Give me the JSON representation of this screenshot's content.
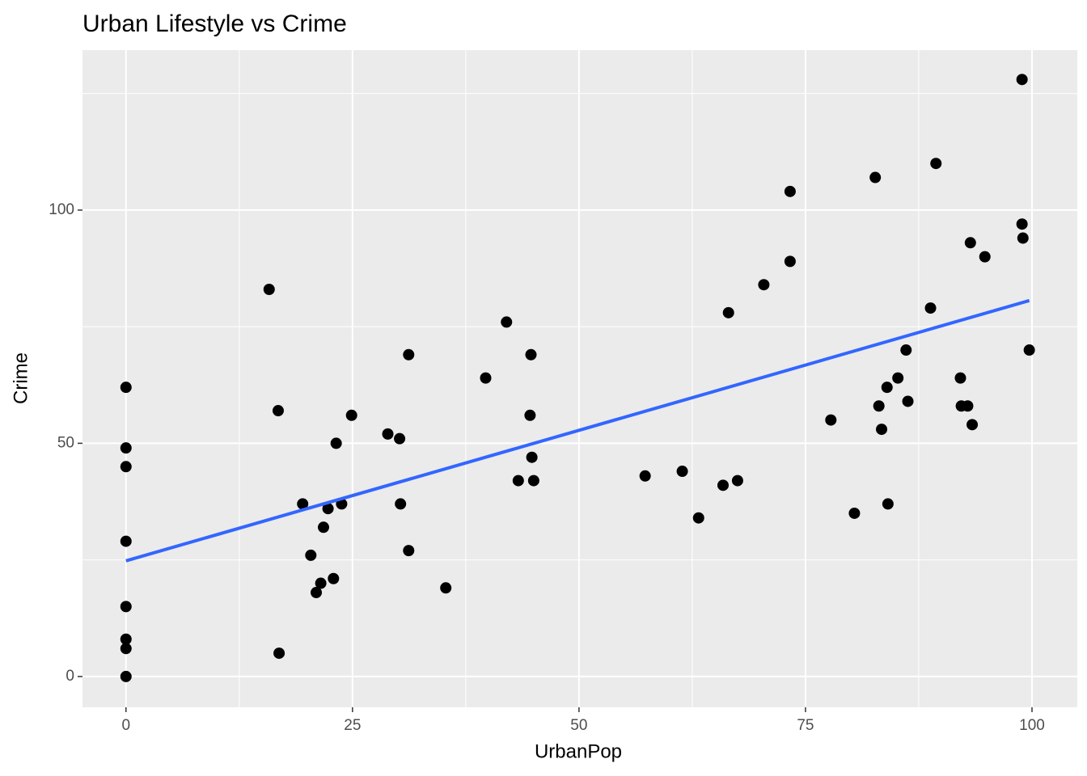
{
  "chart_data": {
    "type": "scatter",
    "title": "Urban Lifestyle vs Crime",
    "x_label": "UrbanPop",
    "y_label": "Crime",
    "xlim": [
      -4.8,
      105
    ],
    "ylim": [
      -6.6,
      134.3
    ],
    "xticks": [
      0,
      25,
      50,
      75,
      100
    ],
    "yticks": [
      0,
      50,
      100
    ],
    "x_minor_ticks": [
      12.5,
      37.5,
      62.5,
      87.5
    ],
    "y_minor_ticks": [
      25,
      75,
      125
    ],
    "grid": true,
    "point_color": "#000000",
    "x": [
      0,
      0,
      0,
      0,
      0,
      0,
      0,
      0,
      15.8,
      16.8,
      16.9,
      19.5,
      20.4,
      21.0,
      21.5,
      21.8,
      22.3,
      22.9,
      23.2,
      23.8,
      24.9,
      28.9,
      30.2,
      30.3,
      31.2,
      31.2,
      35.3,
      39.7,
      42.0,
      43.3,
      44.6,
      44.7,
      44.8,
      45.0,
      57.3,
      61.4,
      63.2,
      65.9,
      66.5,
      67.5,
      70.4,
      73.3,
      73.3,
      77.8,
      80.4,
      82.7,
      83.1,
      83.4,
      84.0,
      84.1,
      85.2,
      86.1,
      86.3,
      88.8,
      89.4,
      92.1,
      92.2,
      92.9,
      93.2,
      93.4,
      94.8,
      98.9,
      98.9,
      99.0,
      99.7
    ],
    "values": [
      62,
      49,
      45,
      29,
      15,
      8,
      6,
      0,
      83,
      57,
      5,
      37,
      26,
      18,
      20,
      32,
      36,
      21,
      50,
      37,
      56,
      52,
      51,
      37,
      27,
      69,
      19,
      64,
      76,
      42,
      56,
      69,
      47,
      42,
      43,
      44,
      34,
      41,
      78,
      42,
      84,
      104,
      89,
      55,
      35,
      107,
      58,
      53,
      62,
      37,
      64,
      70,
      59,
      79,
      110,
      64,
      58,
      58,
      93,
      54,
      90,
      128,
      97,
      94,
      70
    ],
    "trend": {
      "color": "#3366ff",
      "x": [
        0,
        99.7
      ],
      "values": [
        24.8,
        80.6
      ]
    }
  }
}
